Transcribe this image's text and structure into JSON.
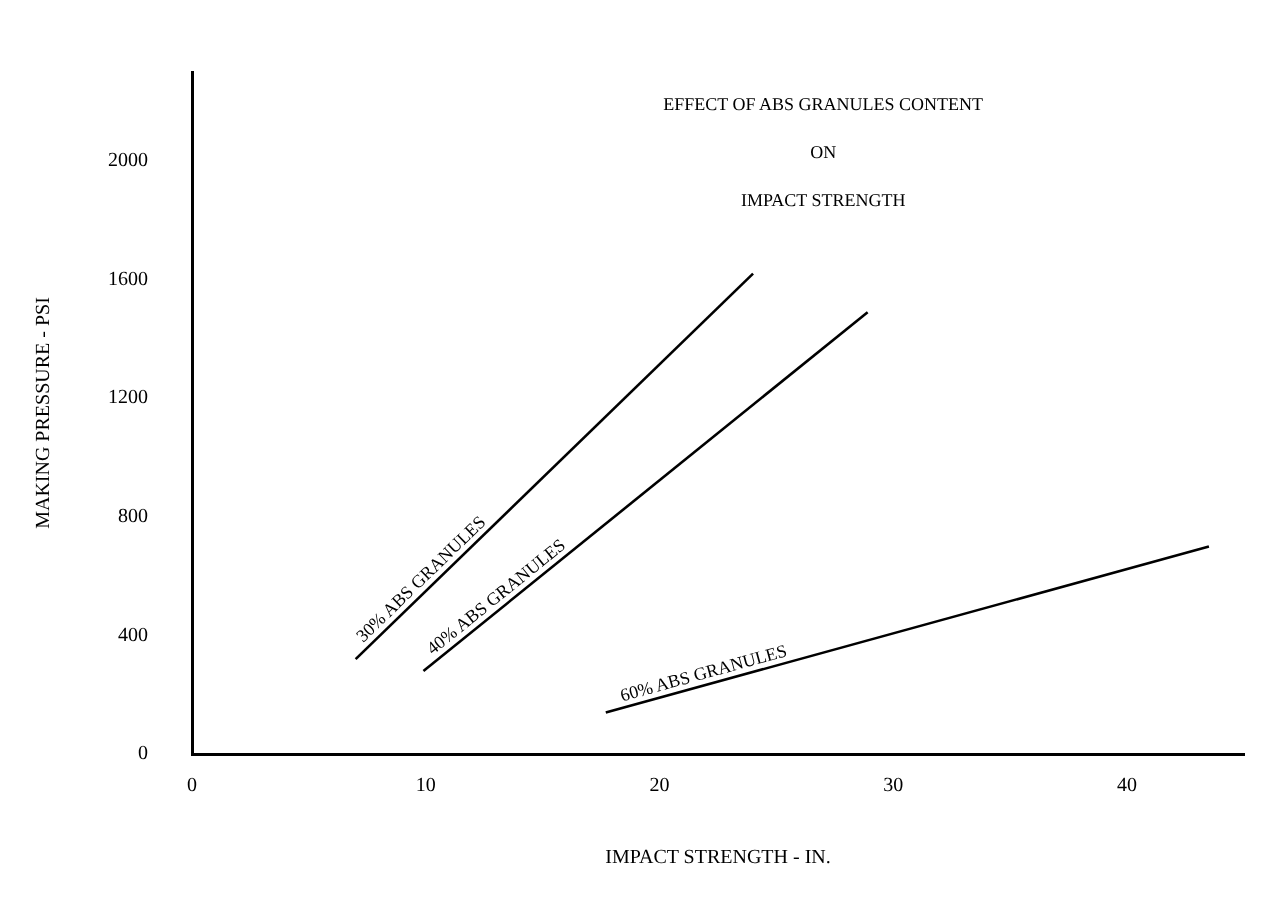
{
  "chart_data": {
    "type": "line",
    "title": [
      "EFFECT OF ABS GRANULES CONTENT",
      "ON",
      "IMPACT STRENGTH"
    ],
    "xlabel": "IMPACT STRENGTH - IN.",
    "ylabel": "MAKING PRESSURE - PSI",
    "xlim": [
      0,
      45
    ],
    "xticks": [
      0,
      10,
      20,
      30,
      40
    ],
    "ylim": [
      0,
      2300
    ],
    "yticks": [
      0,
      400,
      800,
      1200,
      1600,
      2000
    ],
    "grid": false,
    "legend": false,
    "marker": "none",
    "line_style": "solid",
    "series": [
      {
        "name": "30% ABS GRANULES",
        "color": "#000000",
        "x": [
          7,
          24
        ],
        "values": [
          320,
          1620
        ]
      },
      {
        "name": "40% ABS GRANULES",
        "color": "#000000",
        "x": [
          9.9,
          28.9
        ],
        "values": [
          280,
          1490
        ]
      },
      {
        "name": "60% ABS GRANULES",
        "color": "#000000",
        "x": [
          17.7,
          43.5
        ],
        "values": [
          140,
          700
        ]
      }
    ]
  }
}
